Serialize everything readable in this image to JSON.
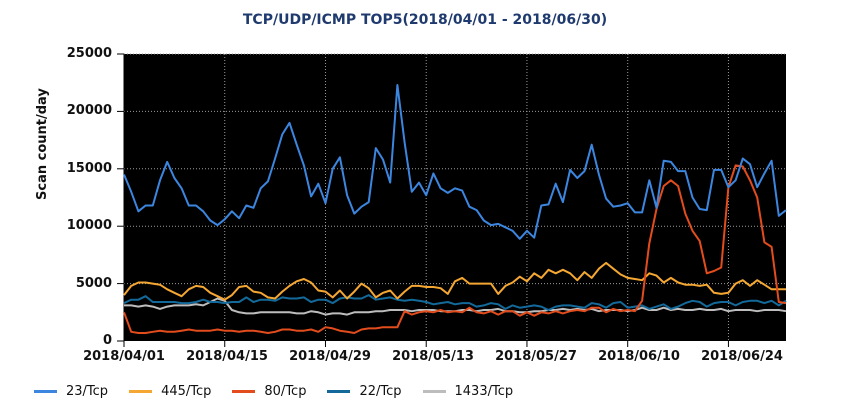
{
  "chart_data": {
    "type": "line",
    "title": "TCP/UDP/ICMP TOP5(2018/04/01 - 2018/06/30)",
    "xlabel": "",
    "ylabel": "Scan count/day",
    "ylim": [
      0,
      25000
    ],
    "yticks": [
      "0",
      "5000",
      "10000",
      "15000",
      "20000",
      "25000"
    ],
    "xticks": [
      "2018/04/01",
      "2018/04/15",
      "2018/04/29",
      "2018/05/13",
      "2018/05/27",
      "2018/06/10",
      "2018/06/24"
    ],
    "x_range": [
      "2018/04/01",
      "2018/06/30"
    ],
    "grid": true,
    "background": "#000000",
    "legend_position": "bottom",
    "series": [
      {
        "name": "23/Tcp",
        "color": "#3c86e0",
        "values": [
          14500,
          13000,
          11300,
          11800,
          11800,
          14000,
          15600,
          14200,
          13300,
          11800,
          11800,
          11300,
          10500,
          10100,
          10600,
          11300,
          10700,
          11800,
          11600,
          13300,
          13900,
          15900,
          18000,
          19000,
          17100,
          15300,
          12600,
          13700,
          12000,
          15000,
          16000,
          12700,
          11100,
          11700,
          12100,
          16800,
          15800,
          13800,
          22300,
          17300,
          13000,
          13800,
          12700,
          14600,
          13300,
          12900,
          13300,
          13100,
          11700,
          11400,
          10500,
          10100,
          10200,
          9900,
          9600,
          8900,
          9600,
          9000,
          11800,
          11900,
          13700,
          12100,
          14900,
          14200,
          14800,
          17100,
          14500,
          12400,
          11700,
          11800,
          12000,
          11200,
          11200,
          14000,
          11600,
          15700,
          15600,
          14800,
          14800,
          12500,
          11500,
          11400,
          14900,
          14900,
          13400,
          14000,
          15900,
          15400,
          13400,
          14600,
          15700,
          10900,
          11400
        ]
      },
      {
        "name": "445/Tcp",
        "color": "#f5a733",
        "values": [
          4000,
          4800,
          5100,
          5100,
          5000,
          4900,
          4500,
          4200,
          3900,
          4500,
          4800,
          4700,
          4200,
          3900,
          3600,
          4000,
          4700,
          4800,
          4300,
          4200,
          3800,
          3700,
          4300,
          4800,
          5200,
          5400,
          5100,
          4400,
          4300,
          3800,
          4400,
          3700,
          4300,
          5000,
          4600,
          3800,
          4200,
          4400,
          3700,
          4300,
          4800,
          4800,
          4700,
          4700,
          4600,
          4100,
          5200,
          5500,
          5000,
          5000,
          5000,
          5000,
          4100,
          4800,
          5100,
          5600,
          5200,
          5900,
          5500,
          6200,
          5900,
          6200,
          5900,
          5300,
          6000,
          5500,
          6300,
          6800,
          6300,
          5800,
          5500,
          5400,
          5300,
          5900,
          5700,
          5100,
          5500,
          5100,
          4900,
          4900,
          4800,
          4900,
          4200,
          4100,
          4200,
          5000,
          5300,
          4800,
          5300,
          4900,
          4500,
          4500,
          4500
        ]
      },
      {
        "name": "80/Tcp",
        "color": "#e34c1d",
        "values": [
          2500,
          800,
          700,
          700,
          800,
          900,
          800,
          800,
          900,
          1000,
          900,
          900,
          900,
          1000,
          900,
          900,
          800,
          900,
          900,
          800,
          700,
          800,
          1000,
          1000,
          900,
          900,
          1000,
          800,
          1200,
          1100,
          900,
          800,
          700,
          1000,
          1100,
          1100,
          1200,
          1200,
          1200,
          2600,
          2300,
          2500,
          2600,
          2500,
          2700,
          2500,
          2600,
          2500,
          2900,
          2500,
          2400,
          2600,
          2300,
          2600,
          2600,
          2200,
          2500,
          2200,
          2500,
          2400,
          2600,
          2400,
          2600,
          2700,
          2600,
          2900,
          2900,
          2500,
          2800,
          2600,
          2700,
          2600,
          3500,
          8500,
          11500,
          13500,
          14000,
          13500,
          11100,
          9600,
          8700,
          5900,
          6100,
          6400,
          13400,
          15300,
          15200,
          14000,
          12500,
          8600,
          8200,
          3400,
          3300
        ]
      },
      {
        "name": "22/Tcp",
        "color": "#136a9a",
        "values": [
          3300,
          3600,
          3600,
          3900,
          3400,
          3400,
          3400,
          3400,
          3300,
          3300,
          3400,
          3600,
          3400,
          3400,
          3300,
          3400,
          3400,
          3800,
          3400,
          3600,
          3600,
          3500,
          3800,
          3700,
          3700,
          3800,
          3400,
          3600,
          3600,
          3300,
          3700,
          3800,
          3700,
          3700,
          4000,
          3600,
          3700,
          3800,
          3600,
          3500,
          3600,
          3500,
          3400,
          3200,
          3300,
          3400,
          3200,
          3300,
          3300,
          3000,
          3100,
          3300,
          3200,
          2800,
          3100,
          2900,
          3000,
          3100,
          3000,
          2700,
          3000,
          3100,
          3100,
          3000,
          2900,
          3300,
          3200,
          2900,
          3300,
          3400,
          2900,
          3000,
          3100,
          2800,
          3000,
          3200,
          2800,
          3000,
          3300,
          3500,
          3400,
          3000,
          3300,
          3400,
          3400,
          3100,
          3400,
          3500,
          3500,
          3300,
          3500,
          3100,
          3500
        ]
      },
      {
        "name": "1433/Tcp",
        "color": "#bdbdbd",
        "values": [
          3100,
          3100,
          3000,
          3100,
          3000,
          2800,
          3000,
          3100,
          3100,
          3100,
          3200,
          3100,
          3400,
          3700,
          3500,
          2700,
          2500,
          2400,
          2400,
          2500,
          2500,
          2500,
          2500,
          2500,
          2400,
          2400,
          2600,
          2500,
          2300,
          2400,
          2400,
          2300,
          2500,
          2500,
          2500,
          2600,
          2600,
          2700,
          2700,
          2700,
          2600,
          2700,
          2700,
          2700,
          2600,
          2600,
          2600,
          2700,
          2700,
          2600,
          2700,
          2700,
          2800,
          2600,
          2600,
          2500,
          2500,
          2600,
          2600,
          2700,
          2700,
          2800,
          2700,
          2800,
          2700,
          2800,
          2600,
          2700,
          2700,
          2700,
          2600,
          2700,
          2900,
          2700,
          2700,
          2900,
          2700,
          2800,
          2700,
          2700,
          2800,
          2700,
          2700,
          2800,
          2600,
          2700,
          2700,
          2700,
          2600,
          2700,
          2700,
          2700,
          2600
        ]
      }
    ]
  },
  "header": {
    "title": "TCP/UDP/ICMP TOP5(2018/04/01 - 2018/06/30)"
  },
  "axes": {
    "ylabel": "Scan count/day",
    "yticks": [
      "25000",
      "20000",
      "15000",
      "10000",
      "5000",
      "0"
    ],
    "xticks": [
      "2018/04/01",
      "2018/04/15",
      "2018/04/29",
      "2018/05/13",
      "2018/05/27",
      "2018/06/10",
      "2018/06/24"
    ]
  },
  "legend": [
    {
      "label": "23/Tcp",
      "color": "#3c86e0"
    },
    {
      "label": "445/Tcp",
      "color": "#f5a733"
    },
    {
      "label": "80/Tcp",
      "color": "#e34c1d"
    },
    {
      "label": "22/Tcp",
      "color": "#136a9a"
    },
    {
      "label": "1433/Tcp",
      "color": "#bdbdbd"
    }
  ]
}
